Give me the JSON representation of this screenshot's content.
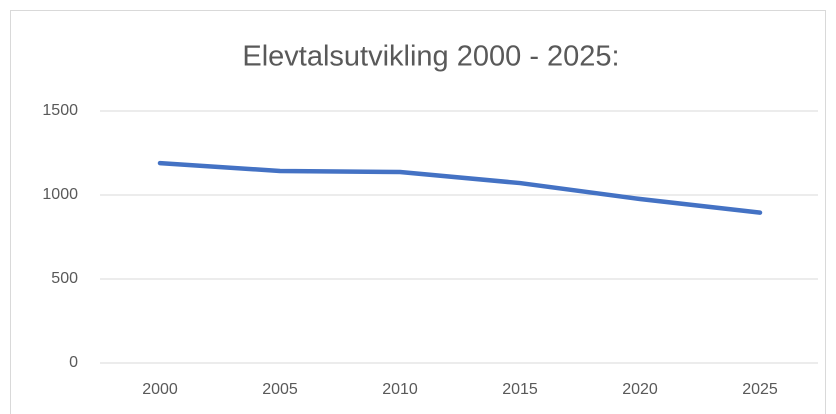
{
  "chart_data": {
    "type": "line",
    "title": "Elevtalsutvikling 2000 - 2025:",
    "categories": [
      "2000",
      "2005",
      "2010",
      "2015",
      "2020",
      "2025"
    ],
    "series": [
      {
        "color": "#4472c4",
        "values": [
          1190,
          1143,
          1137,
          1071,
          976,
          895
        ]
      }
    ],
    "ylim": [
      0,
      1500
    ],
    "yticks": [
      0,
      500,
      1000,
      1500
    ],
    "grid": true
  }
}
